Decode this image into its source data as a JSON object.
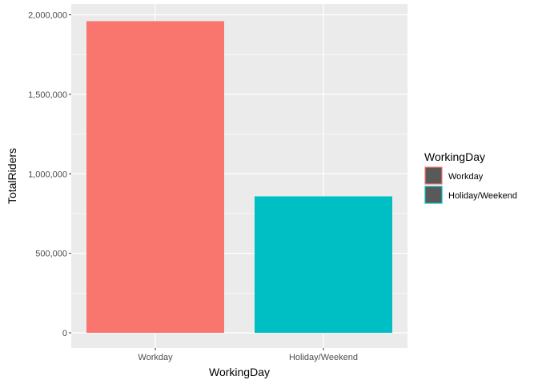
{
  "chart_data": {
    "type": "bar",
    "xlabel": "WorkingDay",
    "ylabel": "TotalRiders",
    "categories": [
      "Workday",
      "Holiday/Weekend"
    ],
    "values": [
      1960000,
      858000
    ],
    "ylim": [
      0,
      2000000
    ],
    "yticks": [
      0,
      500000,
      1000000,
      1500000,
      2000000
    ],
    "ytick_labels": [
      "0",
      "500,000",
      "1,000,000",
      "1,500,000",
      "2,000,000"
    ],
    "colors": [
      "#F8766D",
      "#00BFC4"
    ],
    "grid": true,
    "legend": {
      "title": "WorkingDay",
      "position": "right",
      "entries": [
        "Workday",
        "Holiday/Weekend"
      ],
      "key_fill": "#595959"
    },
    "panel_background": "#EBEBEB",
    "grid_color": "#FFFFFF"
  }
}
